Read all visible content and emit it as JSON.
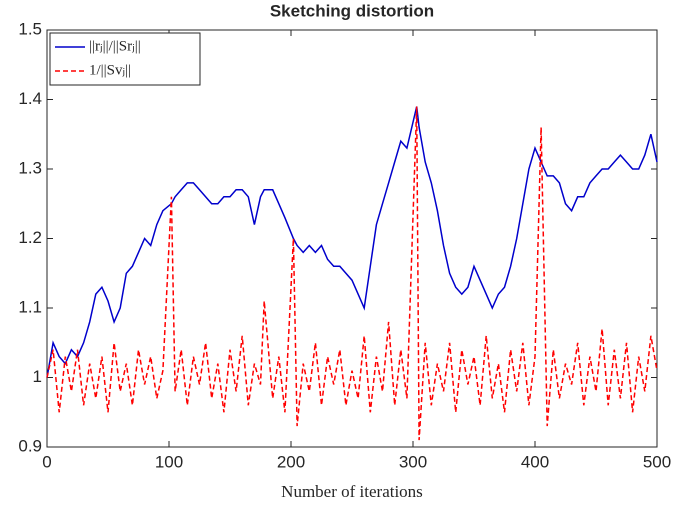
{
  "chart_data": {
    "type": "line",
    "title": "Sketching distortion",
    "x_label": "Number of iterations",
    "x": [
      0,
      5,
      10,
      15,
      20,
      25,
      30,
      35,
      40,
      45,
      50,
      55,
      60,
      65,
      70,
      75,
      80,
      85,
      90,
      95,
      102,
      105,
      110,
      115,
      120,
      125,
      130,
      135,
      140,
      145,
      150,
      155,
      160,
      165,
      170,
      175,
      178,
      185,
      190,
      195,
      202,
      205,
      210,
      215,
      220,
      225,
      230,
      235,
      240,
      245,
      250,
      255,
      260,
      265,
      270,
      275,
      280,
      285,
      290,
      295,
      303,
      305,
      310,
      315,
      320,
      325,
      330,
      335,
      340,
      345,
      350,
      355,
      360,
      365,
      370,
      375,
      380,
      385,
      390,
      395,
      400,
      405,
      410,
      415,
      420,
      425,
      430,
      435,
      440,
      445,
      450,
      455,
      460,
      465,
      470,
      475,
      480,
      485,
      490,
      495,
      500
    ],
    "series": [
      {
        "name": "||rⱼ||/||Srⱼ||",
        "color": "#0000cc",
        "dash": "solid",
        "values": [
          1.0,
          1.05,
          1.03,
          1.02,
          1.04,
          1.03,
          1.05,
          1.08,
          1.12,
          1.13,
          1.11,
          1.08,
          1.1,
          1.15,
          1.16,
          1.18,
          1.2,
          1.19,
          1.22,
          1.24,
          1.25,
          1.26,
          1.27,
          1.28,
          1.28,
          1.27,
          1.26,
          1.25,
          1.25,
          1.26,
          1.26,
          1.27,
          1.27,
          1.26,
          1.22,
          1.26,
          1.27,
          1.27,
          1.25,
          1.23,
          1.2,
          1.19,
          1.18,
          1.19,
          1.18,
          1.19,
          1.17,
          1.16,
          1.16,
          1.15,
          1.14,
          1.12,
          1.1,
          1.16,
          1.22,
          1.25,
          1.28,
          1.31,
          1.34,
          1.33,
          1.39,
          1.36,
          1.31,
          1.28,
          1.24,
          1.19,
          1.15,
          1.13,
          1.12,
          1.13,
          1.16,
          1.14,
          1.12,
          1.1,
          1.12,
          1.13,
          1.16,
          1.2,
          1.25,
          1.3,
          1.33,
          1.31,
          1.29,
          1.29,
          1.28,
          1.25,
          1.24,
          1.26,
          1.26,
          1.28,
          1.29,
          1.3,
          1.3,
          1.31,
          1.32,
          1.31,
          1.3,
          1.3,
          1.32,
          1.35,
          1.31
        ]
      },
      {
        "name": "1/||Svⱼ||",
        "color": "#ff0000",
        "dash": "dashed",
        "values": [
          1.0,
          1.04,
          0.95,
          1.03,
          0.98,
          1.04,
          0.96,
          1.02,
          0.97,
          1.03,
          0.95,
          1.05,
          0.98,
          1.02,
          0.96,
          1.04,
          0.99,
          1.03,
          0.97,
          1.01,
          1.26,
          0.98,
          1.04,
          0.96,
          1.03,
          0.99,
          1.05,
          0.97,
          1.02,
          0.95,
          1.04,
          0.98,
          1.06,
          0.96,
          1.02,
          0.99,
          1.11,
          0.97,
          1.03,
          0.95,
          1.2,
          0.93,
          1.02,
          0.98,
          1.05,
          0.96,
          1.03,
          0.99,
          1.04,
          0.96,
          1.01,
          0.97,
          1.06,
          0.95,
          1.03,
          0.98,
          1.08,
          0.96,
          1.04,
          0.97,
          1.39,
          0.91,
          1.05,
          0.96,
          1.02,
          0.98,
          1.05,
          0.95,
          1.04,
          0.99,
          1.03,
          0.96,
          1.06,
          0.97,
          1.02,
          0.95,
          1.04,
          0.98,
          1.05,
          0.96,
          1.03,
          1.36,
          0.93,
          1.04,
          0.97,
          1.02,
          0.99,
          1.05,
          0.96,
          1.03,
          0.98,
          1.07,
          0.96,
          1.04,
          0.97,
          1.05,
          0.95,
          1.03,
          0.98,
          1.06,
          1.01
        ]
      }
    ],
    "xlim": [
      0,
      500
    ],
    "xticks": [
      0,
      100,
      200,
      300,
      400,
      500
    ],
    "ylim": [
      0.9,
      1.5
    ],
    "yticks": [
      0.9,
      1,
      1.1,
      1.2,
      1.3,
      1.4,
      1.5
    ],
    "grid": false,
    "legend": "upper left"
  }
}
